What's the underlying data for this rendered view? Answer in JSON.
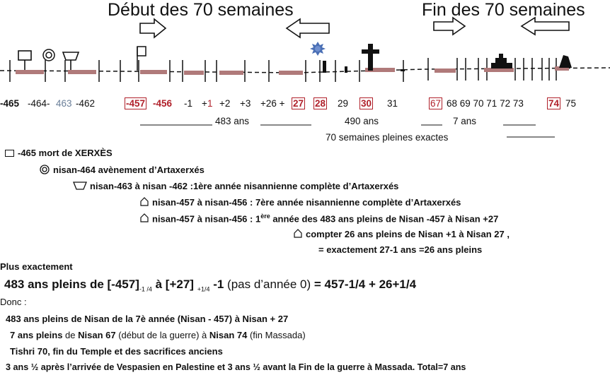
{
  "titles": {
    "start": "Début des 70 semaines",
    "end": "Fin des 70 semaines"
  },
  "years": {
    "y_465": "-465",
    "y_464": "-464-",
    "y_463": "463",
    "y_462": "-462",
    "y_457": "-457",
    "y_456": "-456",
    "y_m1": "-1",
    "y_p1_plus": "+",
    "y_p1_one": "1",
    "y_p2": "+2",
    "y_p3": "+3",
    "y_p26": "+26 +",
    "y_27": "27",
    "y_28": "28",
    "y_29": "29",
    "y_30": "30",
    "y_31": "31",
    "y_67": "67",
    "y_68_73": "68 69 70 71 72 73",
    "y_74": "74",
    "y_75": "75"
  },
  "spans": {
    "s483": "483 ans",
    "s490": "490 ans",
    "s7": "7 ans",
    "s70": "70 semaines pleines exactes"
  },
  "legend": {
    "l1": "-465 mort de XERXÈS",
    "l2": "nisan-464 avènement d’Artaxerxés",
    "l3": "nisan-463 à nisan -462 :1ère année nisannienne complète d’Artaxerxés",
    "l4": "nisan-457 à  nisan-456 : 7ère année nisannienne complète d’Artaxerxés",
    "l5a": "nisan-457 à nisan-456 : 1",
    "l5sup": "ère",
    "l5b": " année des 483 ans  pleins de Nisan -457 à Nisan +27",
    "l6": "compter  26 ans pleins de Nisan +1 à Nisan 27 ,",
    "l7": "= exactement 27-1 ans =26 ans pleins"
  },
  "text": {
    "plus": "Plus exactement",
    "f_a": "483 ans pleins de [-457]",
    "f_sub1": "-1 /4",
    "f_b": " à [+27] ",
    "f_sub2": "+1/4",
    "f_c": " -1",
    "f_d": " (pas d’année 0) ",
    "f_e": "= 457-1/4 + 26+1/4",
    "donc": "Donc :",
    "d1": "483 ans pleins de Nisan de la 7è année (Nisan - 457) à Nisan + 27",
    "d2a": "7 ans pleins ",
    "d2b": "de ",
    "d2c": "Nisan 67",
    "d2d": " (début de la guerre) à ",
    "d2e": "Nisan 74",
    "d2f": " (fin Massada)",
    "d3": "Tishri 70,  fin du Temple et des sacrifices anciens",
    "d4": "3 ans  ½  après l’arrivée de Vespasien en Palestine et 3 ans ½ avant la Fin de la guerre à Massada. Total=7 ans"
  },
  "colors": {
    "red": "#b0202a",
    "bar": "#b07a7a",
    "blue": "#4a6fb5",
    "gray_blue": "#6a7f99"
  }
}
